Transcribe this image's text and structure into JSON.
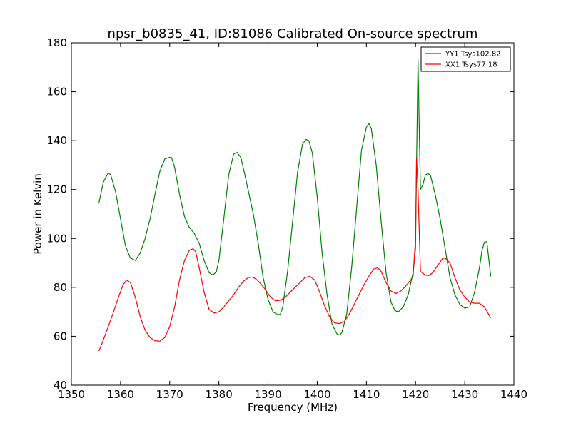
{
  "chart_data": {
    "type": "line",
    "title": "npsr_b0835_41, ID:81086 Calibrated On-source spectrum",
    "xlabel": "Frequency (MHz)",
    "ylabel": "Power in Kelvin",
    "xlim": [
      1350,
      1440
    ],
    "ylim": [
      40,
      180
    ],
    "xticks": [
      1350,
      1360,
      1370,
      1380,
      1390,
      1400,
      1410,
      1420,
      1430,
      1440
    ],
    "yticks": [
      40,
      60,
      80,
      100,
      120,
      140,
      160,
      180
    ],
    "grid": false,
    "legend": "top-right",
    "series": [
      {
        "name": "YY1 Tsys102.82",
        "color": "#008000",
        "x": [
          1355.6,
          1356.5,
          1357.5,
          1358.0,
          1359.0,
          1360.0,
          1361.0,
          1362.0,
          1363.0,
          1364.0,
          1365.0,
          1366.0,
          1367.0,
          1368.0,
          1369.0,
          1370.0,
          1370.4,
          1371.0,
          1372.0,
          1373.0,
          1374.0,
          1375.0,
          1376.0,
          1377.0,
          1378.0,
          1378.8,
          1379.5,
          1380.0,
          1381.0,
          1382.0,
          1383.0,
          1383.7,
          1384.5,
          1385.5,
          1387.0,
          1388.0,
          1389.0,
          1390.0,
          1391.0,
          1392.0,
          1392.5,
          1393.0,
          1394.0,
          1395.0,
          1396.0,
          1397.0,
          1397.7,
          1398.3,
          1399.0,
          1400.0,
          1401.0,
          1402.0,
          1403.0,
          1404.0,
          1404.6,
          1405.0,
          1406.0,
          1407.0,
          1408.0,
          1409.0,
          1410.0,
          1410.5,
          1411.0,
          1412.0,
          1413.0,
          1414.0,
          1415.0,
          1415.8,
          1416.5,
          1417.5,
          1418.5,
          1419.5,
          1420.0,
          1420.2,
          1420.5,
          1420.8,
          1421.0,
          1421.5,
          1422.0,
          1422.5,
          1423.0,
          1424.0,
          1425.0,
          1426.0,
          1427.0,
          1428.0,
          1429.0,
          1430.0,
          1431.0,
          1432.0,
          1433.0,
          1433.5,
          1434.0,
          1434.5,
          1435.3
        ],
        "y": [
          114.5,
          123,
          126.8,
          126,
          119,
          108,
          97,
          92,
          91,
          94,
          100,
          108,
          118,
          127.5,
          132.5,
          133.2,
          133,
          129,
          118,
          109,
          104.5,
          102,
          98,
          91,
          86,
          85,
          86.5,
          91,
          108,
          126,
          134.5,
          135.2,
          133,
          124,
          110,
          98,
          84,
          75,
          70,
          68.8,
          69,
          72,
          87,
          107,
          127,
          138.5,
          140.5,
          140,
          135,
          117,
          94,
          77,
          65,
          61,
          60.5,
          61.5,
          69,
          88,
          112,
          136,
          145.5,
          147,
          145,
          130,
          107,
          86,
          74,
          70.5,
          70,
          72,
          77,
          86,
          96,
          130,
          173,
          140,
          120,
          122,
          126,
          126.5,
          126,
          118,
          108,
          96,
          84,
          77,
          73,
          71.5,
          72,
          78,
          88,
          95,
          98.5,
          98.7,
          84.5
        ]
      },
      {
        "name": "XX1 Tsys77.18",
        "color": "#ff0000",
        "x": [
          1355.6,
          1356.5,
          1357.5,
          1358.5,
          1359.5,
          1360.5,
          1361.2,
          1362.0,
          1363.0,
          1364.0,
          1365.0,
          1366.0,
          1367.0,
          1368.0,
          1369.0,
          1370.0,
          1371.0,
          1372.0,
          1373.0,
          1374.0,
          1374.8,
          1375.3,
          1376.0,
          1377.0,
          1378.0,
          1379.0,
          1380.0,
          1381.0,
          1382.0,
          1383.0,
          1384.0,
          1385.0,
          1386.0,
          1386.8,
          1387.5,
          1388.5,
          1389.5,
          1390.5,
          1391.5,
          1392.5,
          1393.5,
          1394.5,
          1395.5,
          1396.5,
          1397.5,
          1398.5,
          1399.5,
          1400.5,
          1401.5,
          1402.5,
          1403.5,
          1404.5,
          1405.5,
          1406.5,
          1407.5,
          1408.5,
          1409.5,
          1410.5,
          1411.5,
          1412.3,
          1413.0,
          1414.0,
          1415.0,
          1416.0,
          1417.0,
          1418.0,
          1419.0,
          1419.5,
          1420.0,
          1420.2,
          1420.5,
          1421.0,
          1422.0,
          1422.7,
          1423.5,
          1424.5,
          1425.5,
          1426.0,
          1427.0,
          1428.0,
          1429.0,
          1430.0,
          1431.0,
          1432.0,
          1433.0,
          1434.0,
          1435.3
        ],
        "y": [
          54,
          58.5,
          64,
          69.5,
          75.5,
          81,
          83,
          82,
          76,
          68,
          62.5,
          59.5,
          58.2,
          58,
          59.5,
          64,
          72,
          83,
          91,
          95.2,
          95.8,
          94.5,
          88,
          78,
          71,
          69.5,
          70,
          72,
          74.5,
          77,
          80,
          82.5,
          84,
          84.2,
          83.5,
          81.5,
          79,
          76,
          74.5,
          74.7,
          76,
          78,
          80,
          82,
          84,
          84.5,
          83,
          78,
          72.5,
          68,
          65.5,
          65.2,
          66,
          69,
          73,
          77,
          81,
          84.5,
          87.5,
          88,
          86.5,
          82,
          78.5,
          77.5,
          78.5,
          80.5,
          83,
          84.5,
          100,
          133,
          120,
          86.5,
          85,
          84.8,
          86,
          89,
          91.8,
          92,
          90,
          84,
          79,
          76,
          74,
          73.5,
          73.5,
          72,
          67.5
        ]
      }
    ]
  }
}
